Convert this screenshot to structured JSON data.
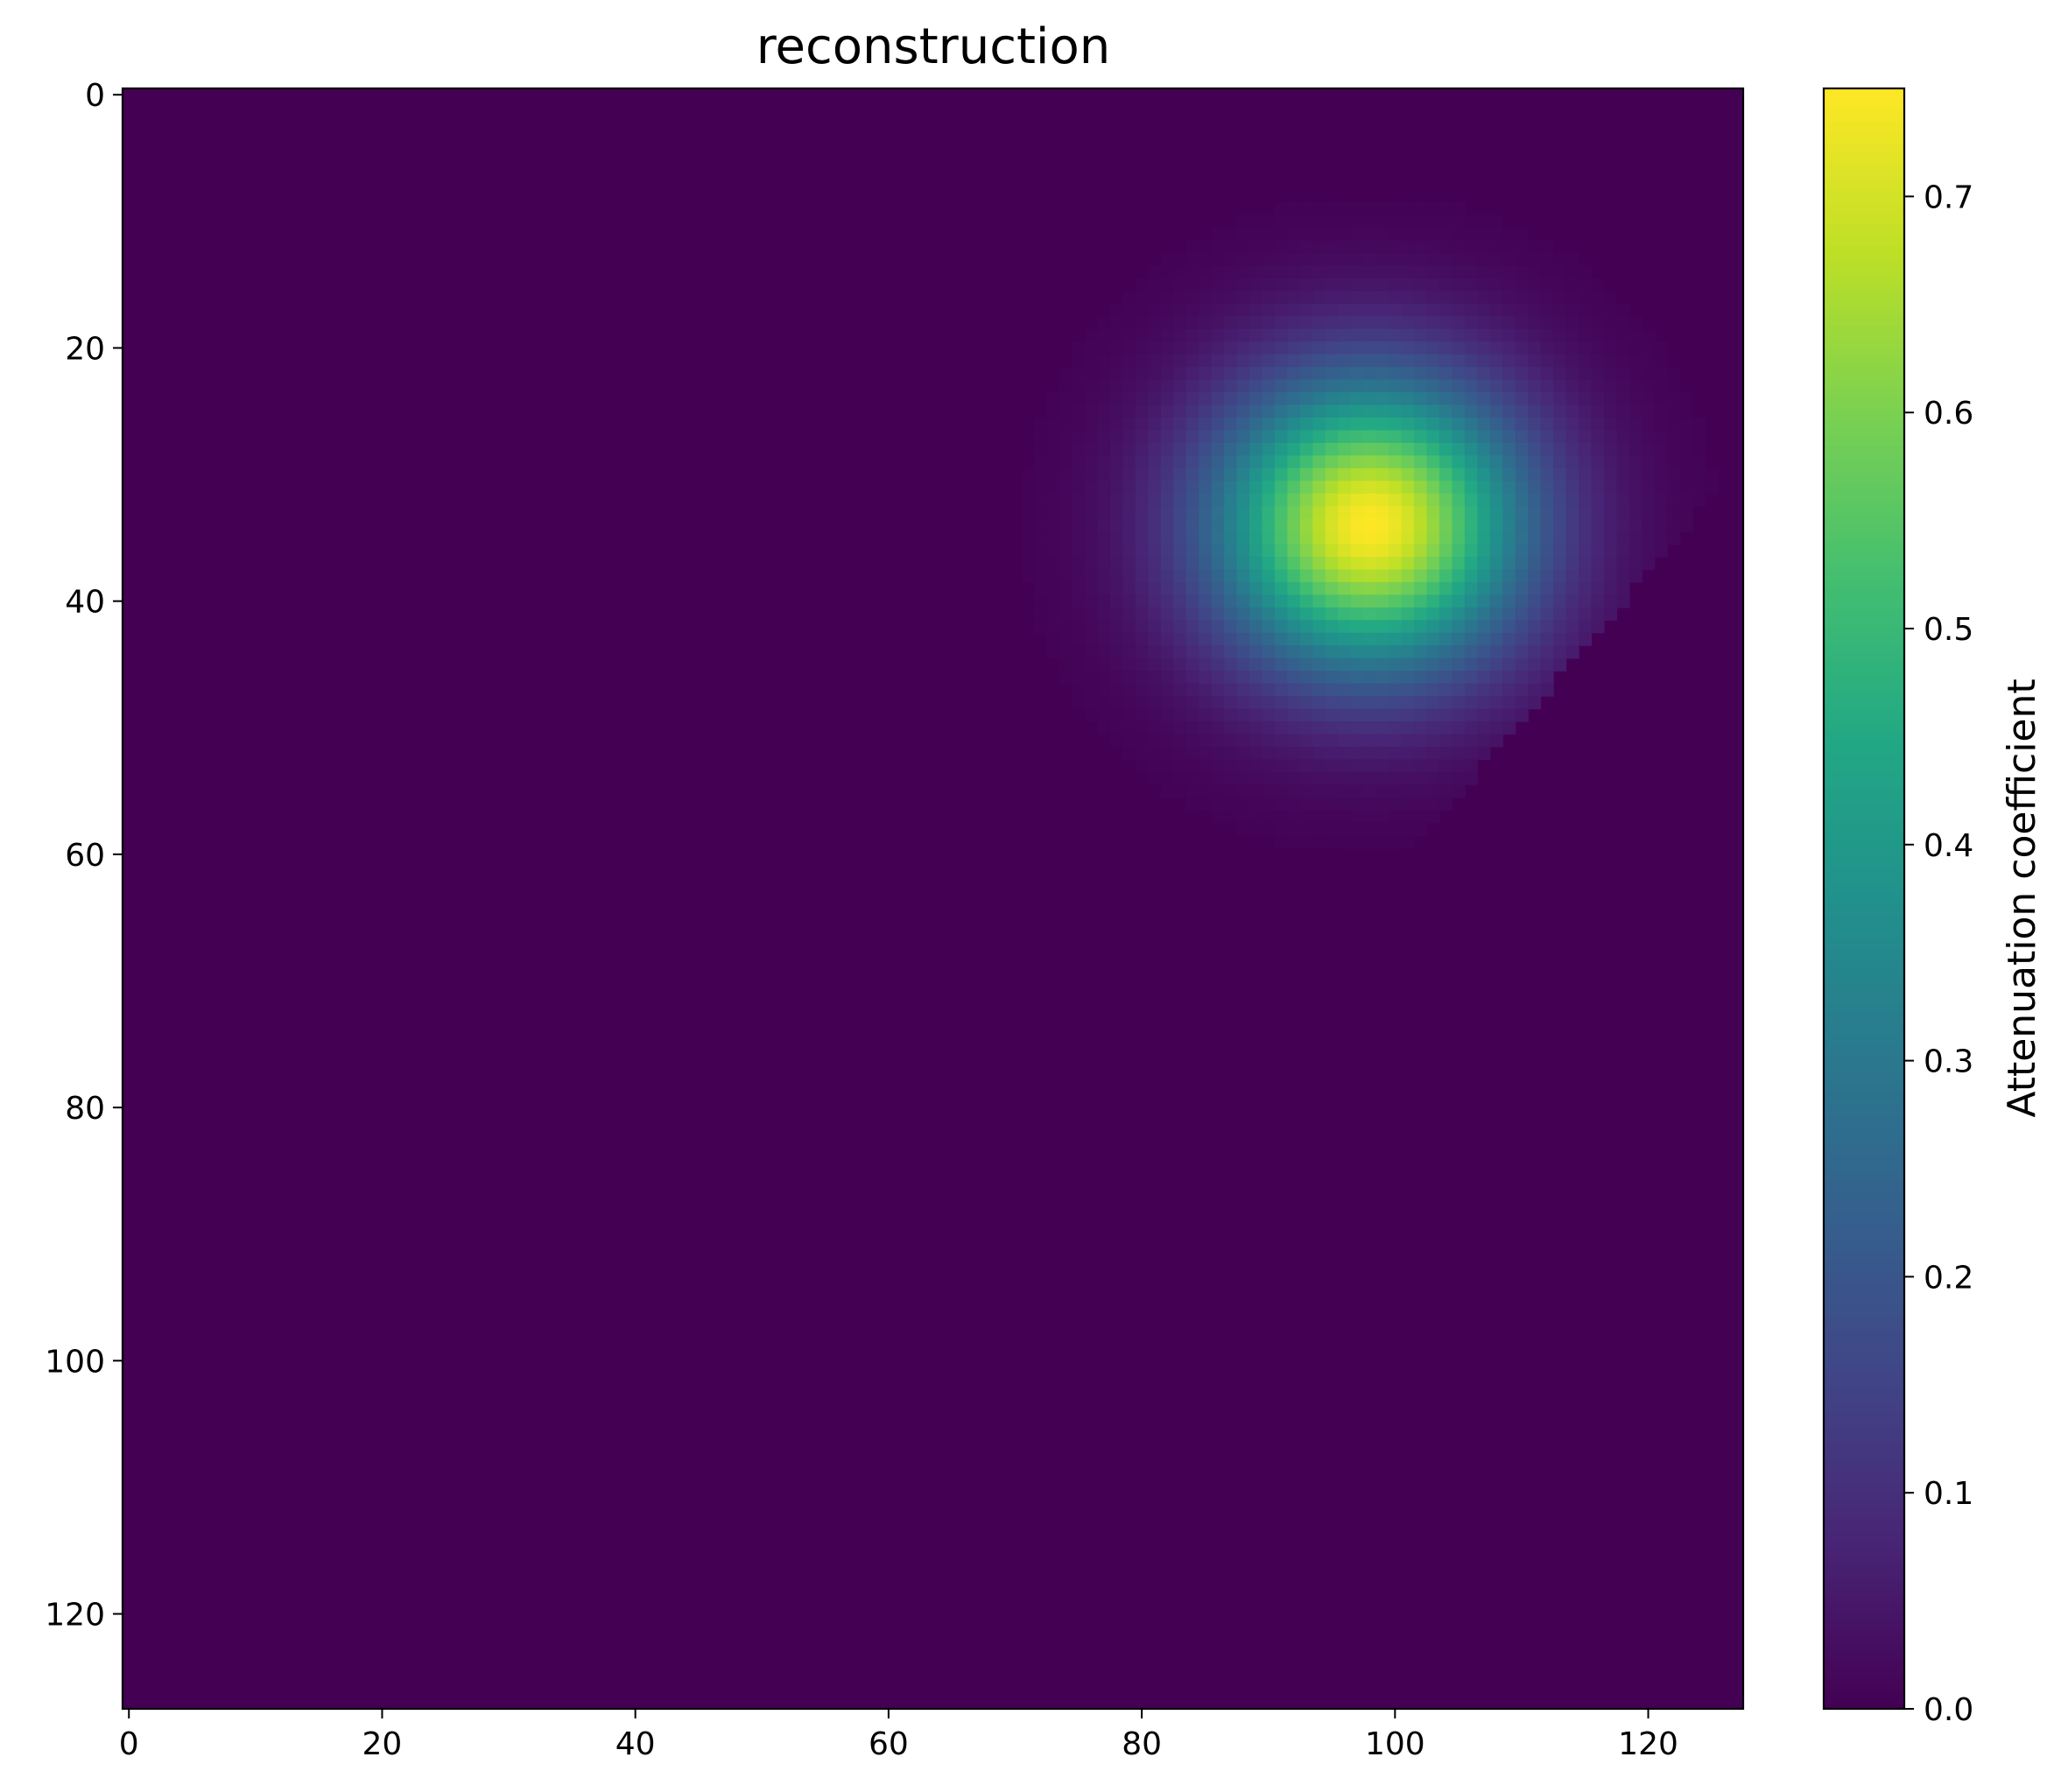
{
  "chart_data": {
    "type": "heatmap",
    "title": "reconstruction",
    "xlabel": "",
    "ylabel": "",
    "grid_shape": [
      128,
      128
    ],
    "xlim": [
      -0.5,
      127.5
    ],
    "ylim": [
      127.5,
      -0.5
    ],
    "x_ticks": [
      0,
      20,
      40,
      60,
      80,
      100,
      120
    ],
    "y_ticks": [
      0,
      20,
      40,
      60,
      80,
      100,
      120
    ],
    "background_value": 0.0,
    "blob": {
      "peak_value": 0.75,
      "peak_col": 98,
      "peak_row": 34,
      "sigma_cols": 8.5,
      "sigma_rows": 8.0,
      "approx_extent_cols": [
        82,
        122
      ],
      "approx_extent_rows": [
        11,
        55
      ],
      "cutoff_edge": "upper-right diagonal"
    },
    "colorbar": {
      "label": "Attenuation coefficient",
      "min": 0.0,
      "max": 0.75,
      "ticks": [
        0.0,
        0.1,
        0.2,
        0.3,
        0.4,
        0.5,
        0.6,
        0.7
      ],
      "tick_labels": [
        "0.0",
        "0.1",
        "0.2",
        "0.3",
        "0.4",
        "0.5",
        "0.6",
        "0.7"
      ],
      "colormap": "viridis"
    }
  }
}
